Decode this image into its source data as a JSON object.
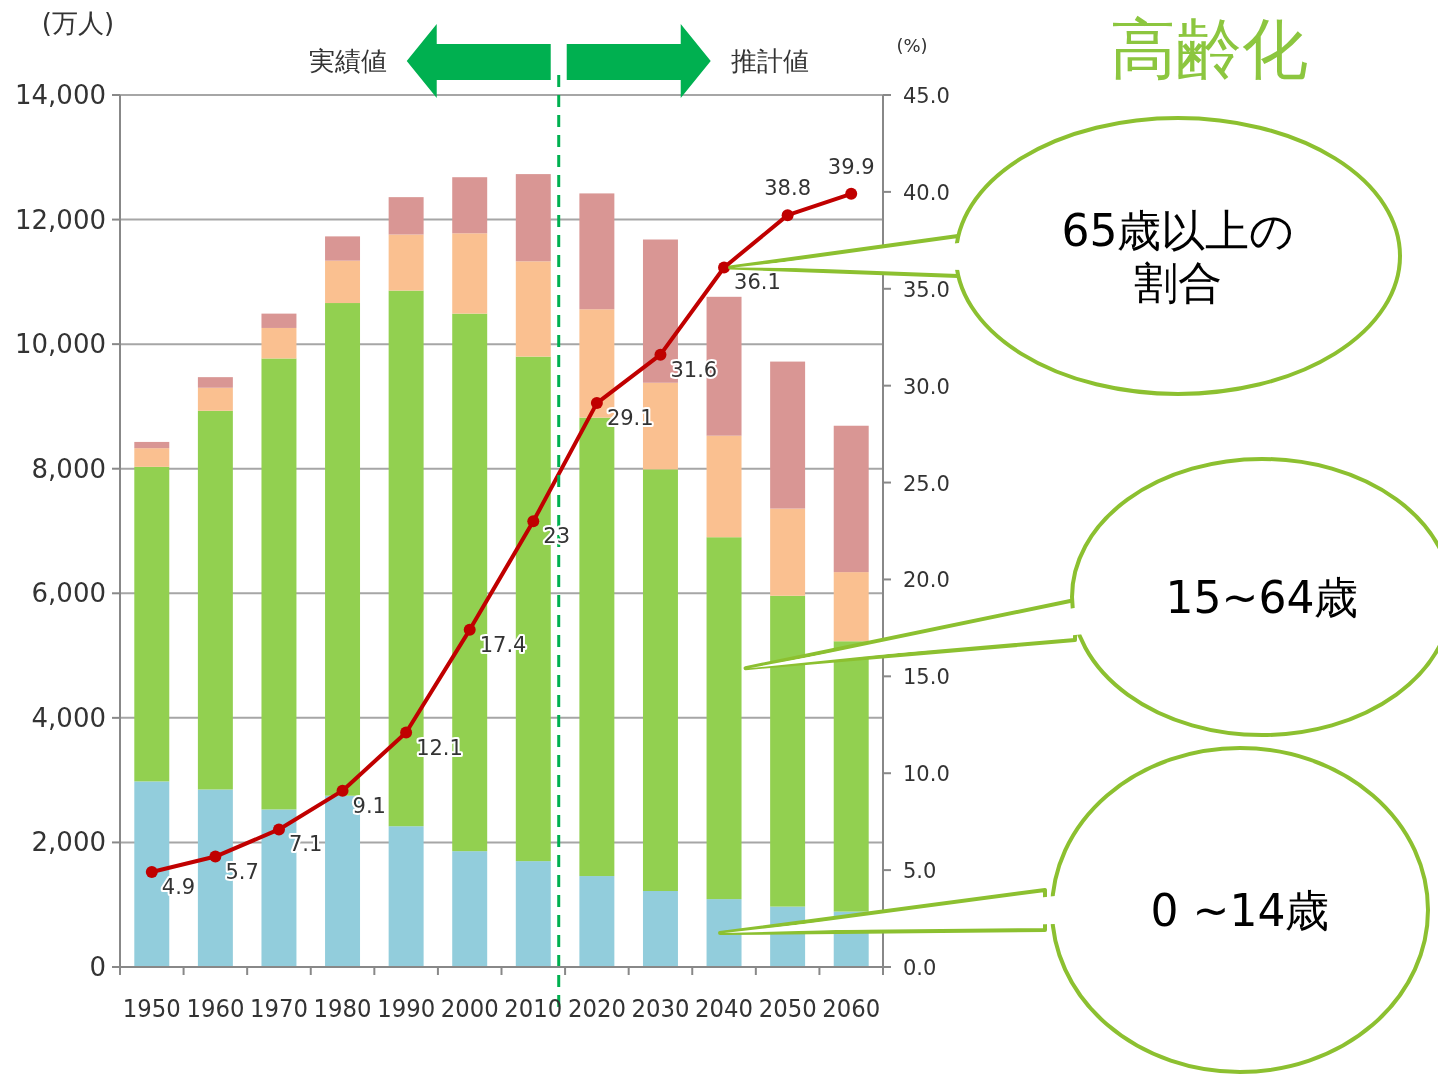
{
  "chart_data": {
    "type": "bar",
    "title": "高齢化",
    "ylabel": "(万人)",
    "y2label": "(%)",
    "stacked": true,
    "x": [
      1950,
      1960,
      1970,
      1980,
      1990,
      2000,
      2010,
      2020,
      2030,
      2040,
      2050,
      2060
    ],
    "xlim": [
      1945,
      2065
    ],
    "xticks": [
      1950,
      1960,
      1970,
      1980,
      1990,
      2000,
      2010,
      2020,
      2030,
      2040,
      2050,
      2060
    ],
    "ylim": [
      0,
      14000
    ],
    "yticks": [
      {
        "value": 0,
        "label": "0"
      },
      {
        "value": 2000,
        "label": "2,000"
      },
      {
        "value": 4000,
        "label": "4,000"
      },
      {
        "value": 6000,
        "label": "6,000"
      },
      {
        "value": 8000,
        "label": "8,000"
      },
      {
        "value": 10000,
        "label": "10,000"
      },
      {
        "value": 12000,
        "label": "12,000"
      },
      {
        "value": 14000,
        "label": "14,000"
      }
    ],
    "y2lim": [
      0,
      45
    ],
    "y2ticks": [
      {
        "value": 0,
        "label": "0.0"
      },
      {
        "value": 5,
        "label": "5.0"
      },
      {
        "value": 10,
        "label": "10.0"
      },
      {
        "value": 15,
        "label": "15.0"
      },
      {
        "value": 20,
        "label": "20.0"
      },
      {
        "value": 25,
        "label": "25.0"
      },
      {
        "value": 30,
        "label": "30.0"
      },
      {
        "value": 35,
        "label": "35.0"
      },
      {
        "value": 40,
        "label": "40.0"
      },
      {
        "value": 45,
        "label": "45.0"
      }
    ],
    "grid": "y",
    "series": [
      {
        "name": "0 ~14歳",
        "color": "#92cddc",
        "values": [
          2980,
          2850,
          2530,
          2750,
          2260,
          1860,
          1700,
          1460,
          1220,
          1090,
          970,
          890
        ]
      },
      {
        "name": "15~64歳",
        "color": "#92d050",
        "values": [
          5050,
          6080,
          7240,
          7910,
          8600,
          8630,
          8100,
          7360,
          6770,
          5810,
          4990,
          4340
        ]
      },
      {
        "color": "#fac090",
        "values": [
          300,
          370,
          490,
          680,
          900,
          1290,
          1530,
          1740,
          1390,
          1630,
          1400,
          1110
        ]
      },
      {
        "color": "#d99694",
        "values": [
          100,
          170,
          230,
          390,
          600,
          900,
          1400,
          1860,
          2300,
          2230,
          2360,
          2350
        ]
      },
      {
        "name": "65歳以上の割合",
        "type": "line",
        "axis": "y2",
        "color": "#c00000",
        "marker": "circle",
        "values": [
          4.9,
          5.7,
          7.1,
          9.1,
          12.1,
          17.4,
          23,
          29.1,
          31.6,
          36.1,
          38.8,
          39.9
        ],
        "value_labels": [
          "4.9",
          "5.7",
          "7.1",
          "9.1",
          "12.1",
          "17.4",
          "23",
          "29.1",
          "31.6",
          "36.1",
          "38.8",
          "39.9"
        ]
      }
    ],
    "ref_lines": [
      {
        "axis": "x",
        "value": 2014,
        "color": "#00b050",
        "line_style": "dashed"
      }
    ],
    "annotations": [
      "実績値",
      "推計値"
    ]
  }
}
